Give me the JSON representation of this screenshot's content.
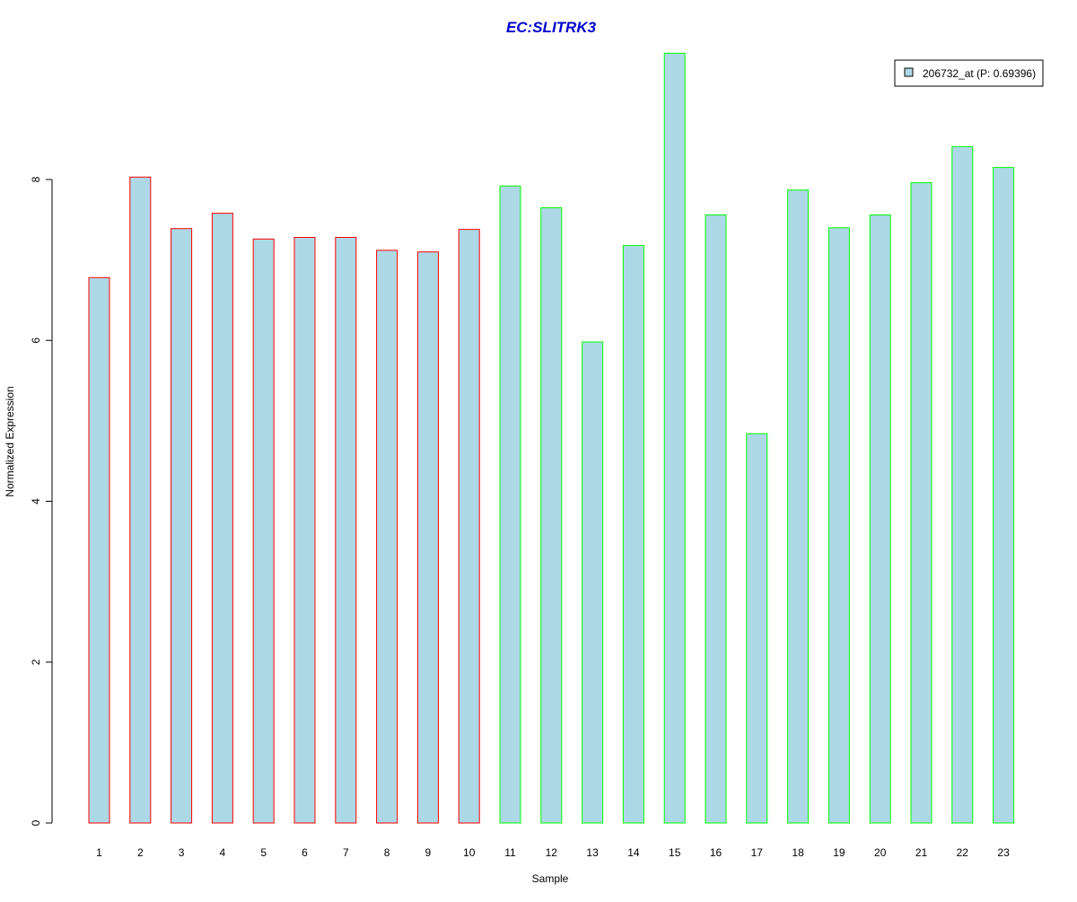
{
  "chart_data": {
    "type": "bar",
    "title": "EC:SLITRK3",
    "xlabel": "Sample",
    "ylabel": "Normalized Expression",
    "ylim": [
      0,
      9.6
    ],
    "yticks": [
      0,
      2,
      4,
      6,
      8
    ],
    "grid": false,
    "legend_position": "top-right",
    "categories": [
      "1",
      "2",
      "3",
      "4",
      "5",
      "6",
      "7",
      "8",
      "9",
      "10",
      "11",
      "12",
      "13",
      "14",
      "15",
      "16",
      "17",
      "18",
      "19",
      "20",
      "21",
      "22",
      "23"
    ],
    "series": [
      {
        "name": "206732_at (P: 0.69396)",
        "values": [
          6.78,
          8.03,
          7.39,
          7.58,
          7.26,
          7.28,
          7.28,
          7.12,
          7.1,
          7.38,
          7.92,
          7.65,
          5.98,
          7.18,
          9.57,
          7.56,
          4.84,
          7.87,
          7.4,
          7.56,
          7.96,
          8.41,
          8.15
        ],
        "groups": [
          1,
          1,
          1,
          1,
          1,
          1,
          1,
          1,
          1,
          1,
          2,
          2,
          2,
          2,
          2,
          2,
          2,
          2,
          2,
          2,
          2,
          2,
          2
        ]
      }
    ],
    "colors": {
      "title": "#0000cc",
      "bar_fill": "#add8e6",
      "group1_border": "#ff0000",
      "group2_border": "#00ff00",
      "axis": "#000000",
      "legend_border": "#000000"
    }
  }
}
